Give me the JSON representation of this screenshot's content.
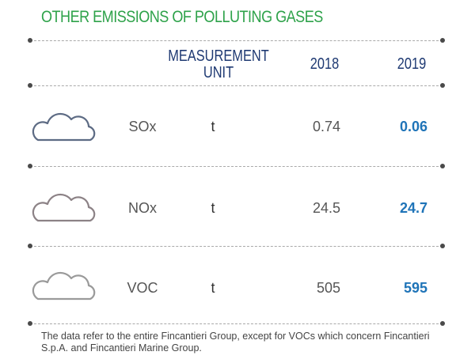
{
  "title": "OTHER EMISSIONS OF POLLUTING GASES",
  "header": {
    "unit_line1": "MEASUREMENT",
    "unit_line2": "UNIT",
    "year1": "2018",
    "year2": "2019"
  },
  "rows": [
    {
      "pollutant": "SOx",
      "unit": "t",
      "v2018": "0.74",
      "v2019": "0.06",
      "cloud_color": "#5d6b84",
      "icon": "cloud-icon"
    },
    {
      "pollutant": "NOx",
      "unit": "t",
      "v2018": "24.5",
      "v2019": "24.7",
      "cloud_color": "#8c8286",
      "icon": "cloud-icon"
    },
    {
      "pollutant": "VOC",
      "unit": "t",
      "v2018": "505",
      "v2019": "595",
      "cloud_color": "#9a9a9a",
      "icon": "cloud-icon"
    }
  ],
  "footnote": "The data refer to the entire Fincantieri Group, except for VOCs which concern Fincantieri S.p.A. and Fincantieri Marine Group.",
  "colors": {
    "title": "#2ea24a",
    "header": "#1f3a73",
    "value_2019": "#1f74b8"
  }
}
